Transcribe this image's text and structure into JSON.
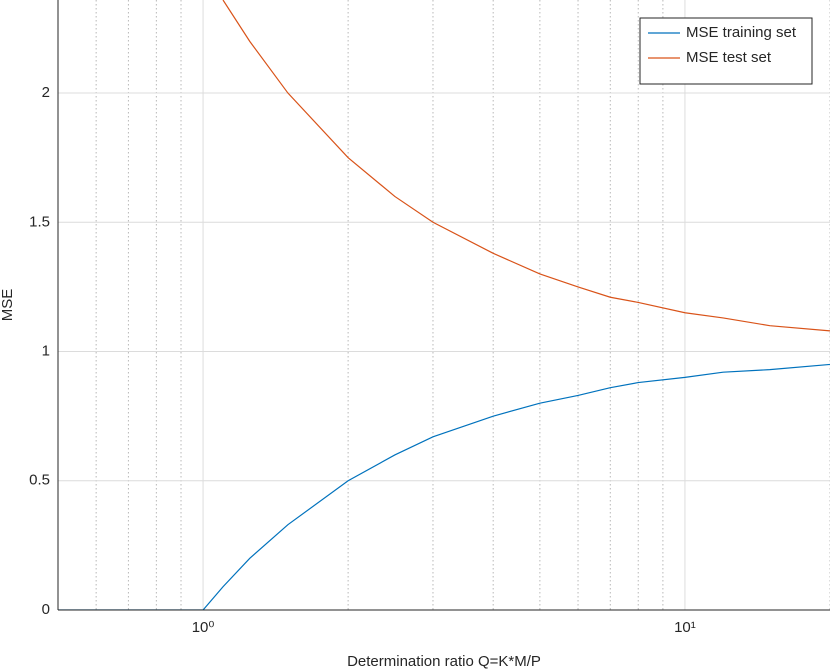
{
  "chart_data": {
    "type": "line",
    "x_label": "Determination ratio Q=K*M/P",
    "y_label": "MSE",
    "x": [
      0.5,
      1,
      1.1,
      1.25,
      1.5,
      2,
      2.5,
      3,
      4,
      5,
      6,
      7,
      8,
      10,
      12,
      15,
      20
    ],
    "series": [
      {
        "name": "MSE training set",
        "color": "#0072bd",
        "values": [
          0,
          0,
          0.09,
          0.2,
          0.33,
          0.5,
          0.6,
          0.67,
          0.75,
          0.8,
          0.83,
          0.86,
          0.88,
          0.9,
          0.92,
          0.93,
          0.95
        ]
      },
      {
        "name": "MSE test set",
        "color": "#d95319",
        "values": [
          null,
          null,
          2.36,
          2.2,
          2.0,
          1.75,
          1.6,
          1.5,
          1.38,
          1.3,
          1.25,
          1.21,
          1.19,
          1.15,
          1.13,
          1.1,
          1.08
        ]
      }
    ],
    "x_scale": "log",
    "xlim": [
      0.5,
      20
    ],
    "xticks": [
      {
        "value": 1,
        "label": "10⁰"
      },
      {
        "value": 10,
        "label": "10¹"
      }
    ],
    "xminorticks": [
      0.6,
      0.7,
      0.8,
      0.9,
      2,
      3,
      4,
      5,
      6,
      7,
      8,
      9,
      20
    ],
    "ylim": [
      0,
      2.36
    ],
    "yticks": [
      0,
      0.5,
      1,
      1.5,
      2
    ],
    "grid": true,
    "legend": "top-right"
  }
}
